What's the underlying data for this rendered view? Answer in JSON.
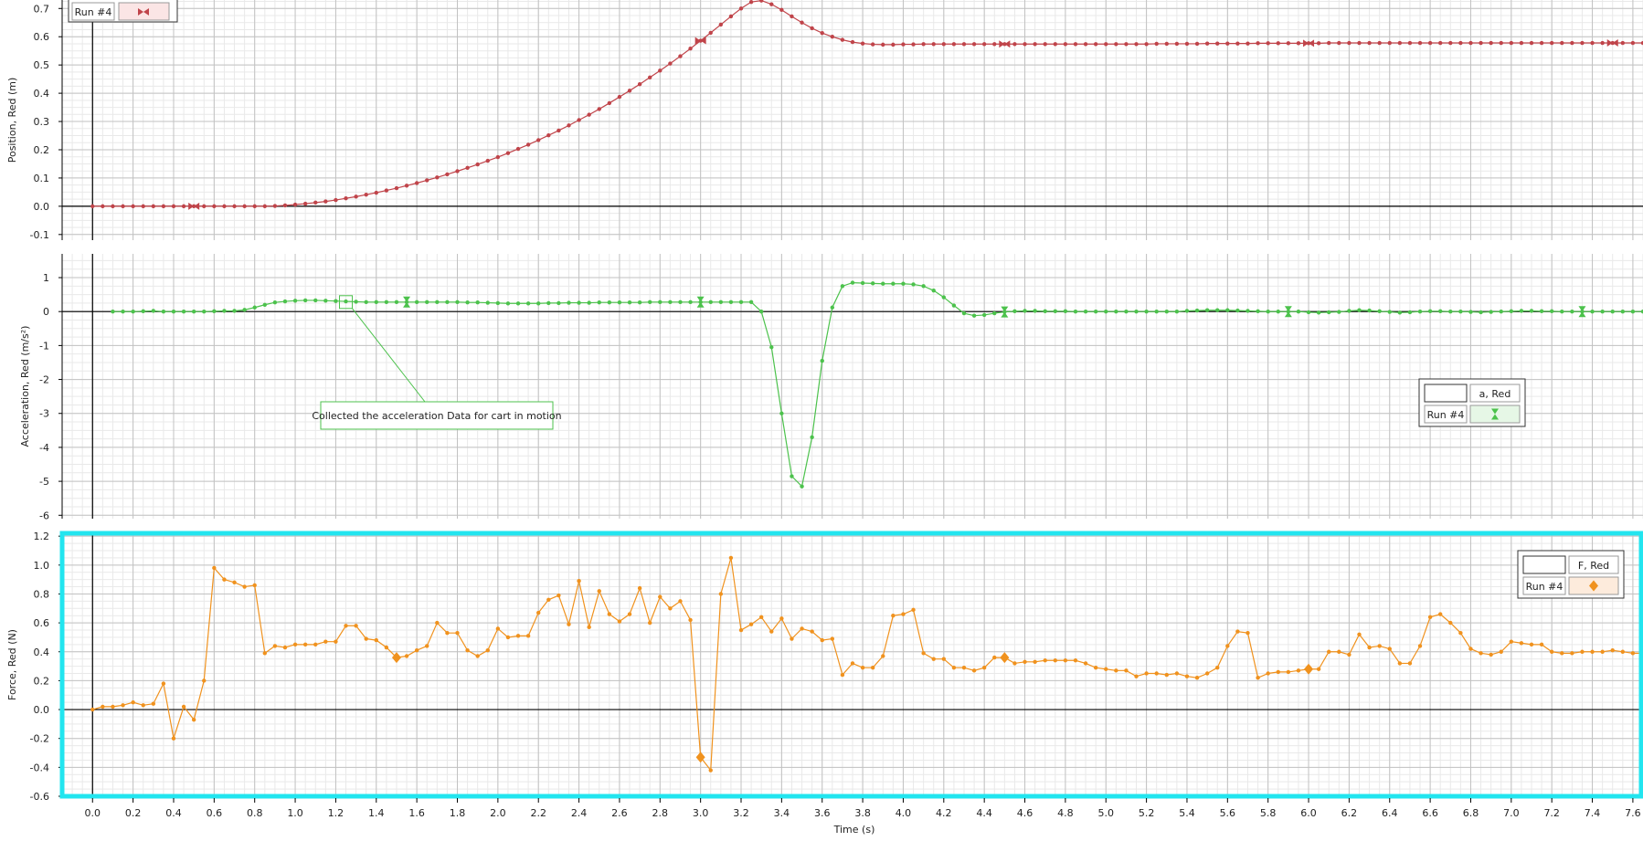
{
  "chart_data": [
    {
      "id": "position",
      "type": "line",
      "ylabel": "Position, Red (m)",
      "ylim": [
        -0.12,
        0.73
      ],
      "xlim": [
        -0.15,
        7.65
      ],
      "yticks": [
        0.7,
        0.6,
        0.5,
        0.4,
        0.3,
        0.2,
        0.1,
        0.0,
        -0.1
      ],
      "ytick_labels": [
        "0.7",
        "0.6",
        "0.5",
        "0.4",
        "0.3",
        "0.2",
        "0.1",
        "0.0",
        "-0.1"
      ],
      "color": "#c0444a",
      "legend": {
        "placement": "top-left",
        "run_label": "Run #4",
        "series_label": ""
      },
      "series": [
        {
          "t0": 0.0,
          "dt": 0.05,
          "values": [
            0,
            0,
            0,
            0,
            0,
            0,
            0,
            0,
            0,
            0,
            0,
            0,
            0,
            0,
            0,
            0,
            0,
            0,
            0.001,
            0.003,
            0.006,
            0.009,
            0.013,
            0.017,
            0.022,
            0.028,
            0.034,
            0.041,
            0.048,
            0.056,
            0.064,
            0.073,
            0.082,
            0.092,
            0.102,
            0.113,
            0.124,
            0.136,
            0.148,
            0.161,
            0.174,
            0.188,
            0.203,
            0.218,
            0.234,
            0.251,
            0.268,
            0.286,
            0.305,
            0.324,
            0.344,
            0.365,
            0.387,
            0.409,
            0.432,
            0.456,
            0.48,
            0.505,
            0.531,
            0.558,
            0.586,
            0.614,
            0.643,
            0.672,
            0.7,
            0.723,
            0.728,
            0.715,
            0.695,
            0.672,
            0.65,
            0.63,
            0.613,
            0.6,
            0.589,
            0.581,
            0.576,
            0.573,
            0.572,
            0.572,
            0.573,
            0.573,
            0.574,
            0.574,
            0.574,
            0.574,
            0.574,
            0.574,
            0.574,
            0.574,
            0.574,
            0.574,
            0.574,
            0.574,
            0.574,
            0.574,
            0.574,
            0.574,
            0.574,
            0.574,
            0.574,
            0.574,
            0.574,
            0.574,
            0.574,
            0.575,
            0.575,
            0.575,
            0.575,
            0.575,
            0.576,
            0.576,
            0.576,
            0.576,
            0.576,
            0.577,
            0.577,
            0.577,
            0.577,
            0.577,
            0.577,
            0.577,
            0.578,
            0.578,
            0.578,
            0.578,
            0.578,
            0.578,
            0.578,
            0.578,
            0.578,
            0.578,
            0.578,
            0.578,
            0.578,
            0.578,
            0.578,
            0.578,
            0.578,
            0.578,
            0.578,
            0.578,
            0.578,
            0.578,
            0.578,
            0.578,
            0.578,
            0.578,
            0.578,
            0.578,
            0.578,
            0.578,
            0.578,
            0.578,
            0.578,
            0.578,
            0.578
          ],
          "markers": [
            0.5,
            3.0,
            4.5,
            6.0,
            7.5
          ]
        }
      ]
    },
    {
      "id": "acceleration",
      "type": "line",
      "ylabel": "Acceleration, Red (m/s²)",
      "ylim": [
        -6.1,
        1.7
      ],
      "xlim": [
        -0.15,
        7.65
      ],
      "yticks": [
        1,
        0,
        -1,
        -2,
        -3,
        -4,
        -5,
        -6
      ],
      "ytick_labels": [
        "1",
        "0",
        "-1",
        "-2",
        "-3",
        "-4",
        "-5",
        "-6"
      ],
      "color": "#4cc24c",
      "legend": {
        "placement": "right",
        "run_label": "Run #4",
        "series_label": "a, Red"
      },
      "annotation": {
        "text": "Collected the acceleration Data for cart in motion",
        "x": 1.25,
        "y": 0.28
      },
      "series": [
        {
          "t0": 0.1,
          "dt": 0.05,
          "values": [
            0,
            0,
            0,
            0.01,
            0.02,
            0,
            0,
            0,
            0,
            0,
            0.01,
            0.02,
            0.02,
            0.05,
            0.12,
            0.2,
            0.27,
            0.3,
            0.32,
            0.33,
            0.33,
            0.32,
            0.31,
            0.3,
            0.29,
            0.28,
            0.28,
            0.28,
            0.28,
            0.28,
            0.28,
            0.28,
            0.28,
            0.28,
            0.28,
            0.27,
            0.27,
            0.26,
            0.25,
            0.24,
            0.24,
            0.24,
            0.24,
            0.25,
            0.25,
            0.26,
            0.26,
            0.26,
            0.27,
            0.27,
            0.27,
            0.27,
            0.27,
            0.28,
            0.28,
            0.28,
            0.28,
            0.28,
            0.28,
            0.28,
            0.28,
            0.28,
            0.28,
            0.28,
            0.0,
            -1.05,
            -3.0,
            -4.85,
            -5.15,
            -3.7,
            -1.45,
            0.12,
            0.75,
            0.85,
            0.84,
            0.83,
            0.82,
            0.82,
            0.82,
            0.8,
            0.75,
            0.62,
            0.42,
            0.18,
            -0.05,
            -0.12,
            -0.1,
            -0.05,
            -0.01,
            0.01,
            0.02,
            0.02,
            0.01,
            0.01,
            0.01,
            0,
            0,
            0,
            0,
            0,
            0,
            0,
            0,
            0,
            0,
            0,
            0.02,
            0.03,
            0.04,
            0.04,
            0.04,
            0.03,
            0.02,
            0.01,
            0,
            0,
            0,
            0,
            -0.02,
            -0.03,
            -0.02,
            -0.01,
            0.02,
            0.04,
            0.03,
            0.01,
            -0.01,
            -0.03,
            -0.02,
            0,
            0.01,
            0.01,
            0,
            0,
            -0.01,
            -0.02,
            -0.01,
            0,
            0.01,
            0.02,
            0.02,
            0.01,
            0.01,
            0,
            0,
            0,
            0,
            0,
            0,
            0,
            0,
            0,
            0,
            0
          ],
          "markers": [
            1.55,
            3.0,
            4.5,
            5.9,
            7.35
          ]
        }
      ]
    },
    {
      "id": "force",
      "type": "line",
      "ylabel": "Force, Red (N)",
      "xlabel": "Time (s)",
      "ylim": [
        -0.6,
        1.22
      ],
      "xlim": [
        -0.15,
        7.65
      ],
      "yticks": [
        1.2,
        1.0,
        0.8,
        0.6,
        0.4,
        0.2,
        0.0,
        -0.2,
        -0.4,
        -0.6
      ],
      "ytick_labels": [
        "1.2",
        "1.0",
        "0.8",
        "0.6",
        "0.4",
        "0.2",
        "0.0",
        "-0.2",
        "-0.4",
        "-0.6"
      ],
      "xticks": [
        0.0,
        0.2,
        0.4,
        0.6,
        0.8,
        1.0,
        1.2,
        1.4,
        1.6,
        1.8,
        2.0,
        2.2,
        2.4,
        2.6,
        2.8,
        3.0,
        3.2,
        3.4,
        3.6,
        3.8,
        4.0,
        4.2,
        4.4,
        4.6,
        4.8,
        5.0,
        5.2,
        5.4,
        5.6,
        5.8,
        6.0,
        6.2,
        6.4,
        6.6,
        6.8,
        7.0,
        7.2,
        7.4,
        7.6
      ],
      "xtick_labels": [
        "0.0",
        "0.2",
        "0.4",
        "0.6",
        "0.8",
        "1.0",
        "1.2",
        "1.4",
        "1.6",
        "1.8",
        "2.0",
        "2.2",
        "2.4",
        "2.6",
        "2.8",
        "3.0",
        "3.2",
        "3.4",
        "3.6",
        "3.8",
        "4.0",
        "4.2",
        "4.4",
        "4.6",
        "4.8",
        "5.0",
        "5.2",
        "5.4",
        "5.6",
        "5.8",
        "6.0",
        "6.2",
        "6.4",
        "6.6",
        "6.8",
        "7.0",
        "7.2",
        "7.4",
        "7.6"
      ],
      "color": "#f0921e",
      "selection_color": "#22e5ef",
      "legend": {
        "placement": "top-right",
        "run_label": "Run #4",
        "series_label": "F, Red"
      },
      "series": [
        {
          "t0": 0.0,
          "dt": 0.05,
          "values": [
            0.0,
            0.02,
            0.02,
            0.03,
            0.05,
            0.03,
            0.04,
            0.18,
            -0.2,
            0.02,
            -0.07,
            0.2,
            0.98,
            0.9,
            0.88,
            0.85,
            0.86,
            0.39,
            0.44,
            0.43,
            0.45,
            0.45,
            0.45,
            0.47,
            0.47,
            0.58,
            0.58,
            0.49,
            0.48,
            0.43,
            0.36,
            0.37,
            0.41,
            0.44,
            0.6,
            0.53,
            0.53,
            0.41,
            0.37,
            0.41,
            0.56,
            0.5,
            0.51,
            0.51,
            0.67,
            0.76,
            0.79,
            0.59,
            0.89,
            0.57,
            0.82,
            0.66,
            0.61,
            0.66,
            0.84,
            0.6,
            0.78,
            0.7,
            0.75,
            0.62,
            -0.33,
            -0.42,
            0.8,
            1.05,
            0.55,
            0.59,
            0.64,
            0.54,
            0.63,
            0.49,
            0.56,
            0.54,
            0.48,
            0.49,
            0.24,
            0.32,
            0.29,
            0.29,
            0.37,
            0.65,
            0.66,
            0.69,
            0.39,
            0.35,
            0.35,
            0.29,
            0.29,
            0.27,
            0.29,
            0.36,
            0.36,
            0.32,
            0.33,
            0.33,
            0.34,
            0.34,
            0.34,
            0.34,
            0.32,
            0.29,
            0.28,
            0.27,
            0.27,
            0.23,
            0.25,
            0.25,
            0.24,
            0.25,
            0.23,
            0.22,
            0.25,
            0.29,
            0.44,
            0.54,
            0.53,
            0.22,
            0.25,
            0.26,
            0.26,
            0.27,
            0.28,
            0.28,
            0.4,
            0.4,
            0.38,
            0.52,
            0.43,
            0.44,
            0.42,
            0.32,
            0.32,
            0.44,
            0.64,
            0.66,
            0.6,
            0.53,
            0.42,
            0.39,
            0.38,
            0.4,
            0.47,
            0.46,
            0.45,
            0.45,
            0.4,
            0.39,
            0.39,
            0.4,
            0.4,
            0.4,
            0.41,
            0.4,
            0.39,
            0.39,
            0.38
          ],
          "markers": [
            1.5,
            3.0,
            4.5,
            6.0
          ]
        }
      ]
    }
  ]
}
